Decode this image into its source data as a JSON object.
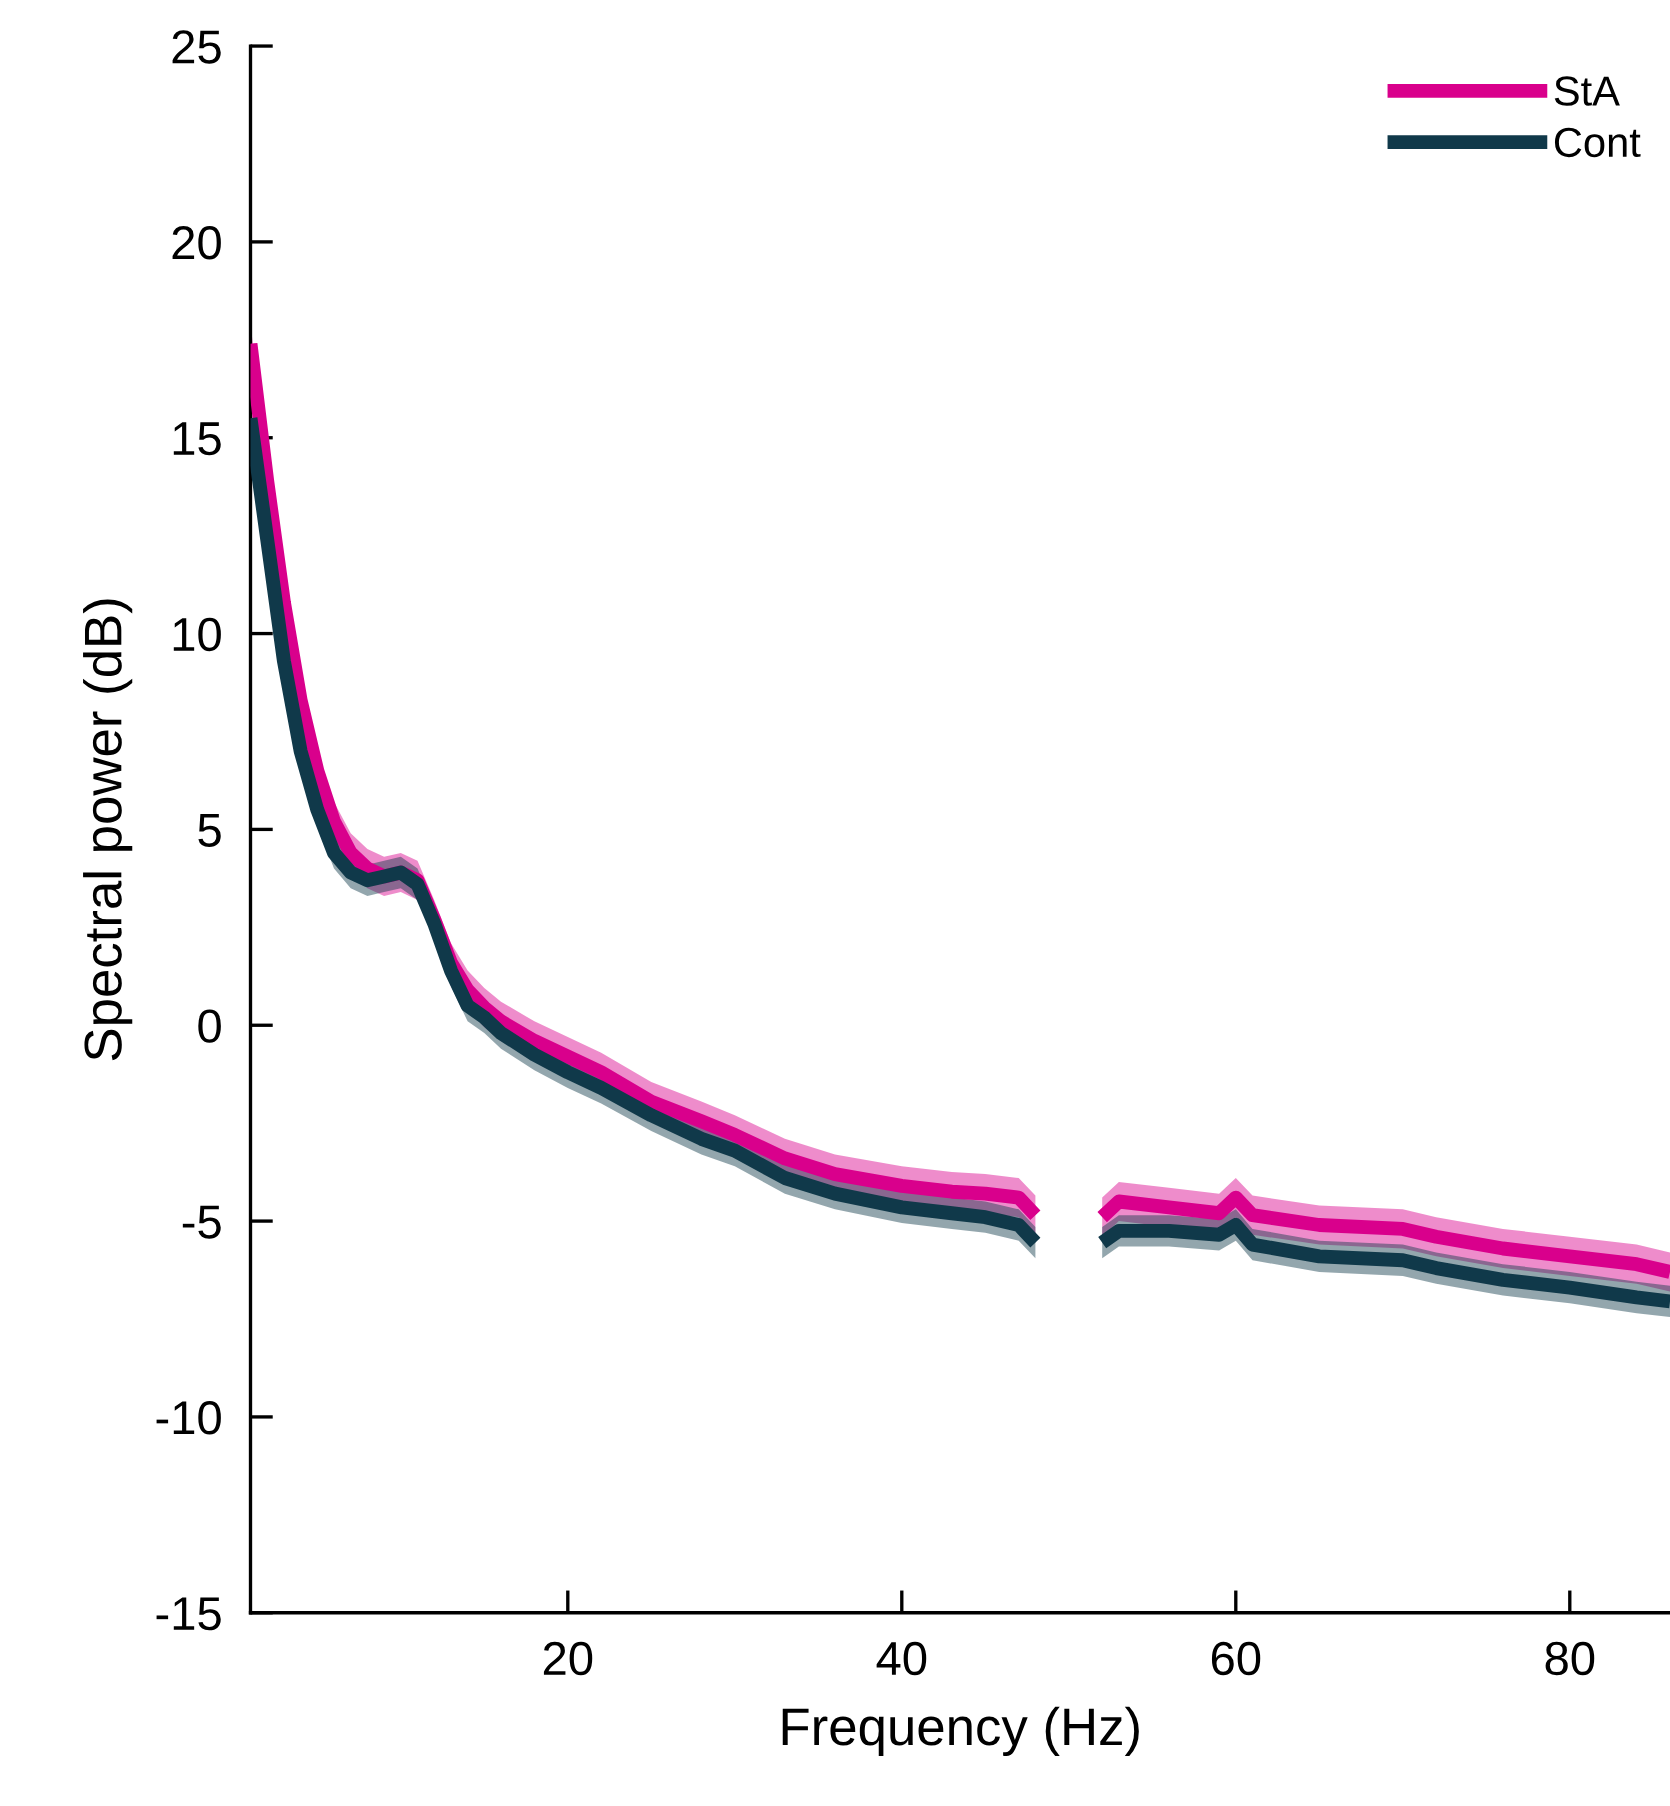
{
  "chart_data": {
    "type": "line",
    "xlabel": "Frequency (Hz)",
    "ylabel": "Spectral power (dB)",
    "x": [
      1,
      2,
      3,
      4,
      5,
      6,
      7,
      8,
      9,
      10,
      11,
      12,
      13,
      14,
      15,
      16,
      18,
      20,
      22,
      25,
      28,
      30,
      33,
      36,
      40,
      43,
      45,
      47,
      48,
      50,
      52,
      53,
      56,
      59,
      60,
      61,
      65,
      70,
      72,
      76,
      80,
      84,
      86
    ],
    "series": [
      {
        "name": "StA",
        "color": "#d9008c",
        "values": [
          17.4,
          13.9,
          10.8,
          8.3,
          6.5,
          5.2,
          4.4,
          4.0,
          3.8,
          3.9,
          3.7,
          2.7,
          1.6,
          0.9,
          0.45,
          0.1,
          -0.4,
          -0.8,
          -1.2,
          -1.95,
          -2.45,
          -2.8,
          -3.4,
          -3.8,
          -4.1,
          -4.25,
          -4.3,
          -4.4,
          -4.85,
          null,
          -4.9,
          -4.5,
          -4.65,
          -4.8,
          -4.4,
          -4.85,
          -5.1,
          -5.2,
          -5.4,
          -5.7,
          -5.9,
          -6.1,
          -6.3
        ],
        "upper": [
          17.9,
          14.4,
          11.3,
          8.8,
          7.0,
          5.7,
          4.9,
          4.5,
          4.3,
          4.4,
          4.2,
          3.2,
          2.1,
          1.4,
          0.95,
          0.6,
          0.1,
          -0.3,
          -0.7,
          -1.45,
          -1.95,
          -2.3,
          -2.9,
          -3.3,
          -3.6,
          -3.75,
          -3.8,
          -3.9,
          -4.35,
          null,
          -4.4,
          -4.0,
          -4.15,
          -4.3,
          -3.9,
          -4.35,
          -4.6,
          -4.7,
          -4.9,
          -5.2,
          -5.4,
          -5.6,
          -5.8
        ],
        "lower": [
          16.9,
          13.4,
          10.3,
          7.8,
          6.0,
          4.7,
          3.9,
          3.5,
          3.3,
          3.4,
          3.2,
          2.2,
          1.1,
          0.4,
          -0.05,
          -0.4,
          -0.9,
          -1.3,
          -1.7,
          -2.45,
          -2.95,
          -3.3,
          -3.9,
          -4.3,
          -4.6,
          -4.75,
          -4.8,
          -4.9,
          -5.35,
          null,
          -5.4,
          -5.0,
          -5.15,
          -5.3,
          -4.9,
          -5.35,
          -5.6,
          -5.7,
          -5.9,
          -6.2,
          -6.4,
          -6.6,
          -6.8
        ]
      },
      {
        "name": "Cont",
        "color": "#10394a",
        "values": [
          15.5,
          12.4,
          9.3,
          7.0,
          5.5,
          4.4,
          3.9,
          3.7,
          3.8,
          3.9,
          3.6,
          2.6,
          1.4,
          0.5,
          0.2,
          -0.2,
          -0.75,
          -1.2,
          -1.6,
          -2.3,
          -2.9,
          -3.2,
          -3.9,
          -4.3,
          -4.65,
          -4.8,
          -4.9,
          -5.1,
          -5.55,
          null,
          -5.55,
          -5.25,
          -5.25,
          -5.35,
          -5.1,
          -5.6,
          -5.9,
          -6.0,
          -6.2,
          -6.5,
          -6.7,
          -6.95,
          -7.05
        ],
        "upper": [
          15.9,
          12.8,
          9.7,
          7.4,
          5.9,
          4.8,
          4.3,
          4.1,
          4.2,
          4.3,
          4.0,
          3.0,
          1.8,
          0.9,
          0.6,
          0.2,
          -0.35,
          -0.8,
          -1.2,
          -1.9,
          -2.5,
          -2.8,
          -3.5,
          -3.9,
          -4.25,
          -4.4,
          -4.5,
          -4.7,
          -5.15,
          null,
          -5.15,
          -4.85,
          -4.85,
          -4.95,
          -4.7,
          -5.2,
          -5.5,
          -5.6,
          -5.8,
          -6.1,
          -6.3,
          -6.55,
          -6.65
        ],
        "lower": [
          15.1,
          12.0,
          8.9,
          6.6,
          5.1,
          4.0,
          3.5,
          3.3,
          3.4,
          3.5,
          3.2,
          2.2,
          1.0,
          0.1,
          -0.2,
          -0.6,
          -1.15,
          -1.6,
          -2.0,
          -2.7,
          -3.3,
          -3.6,
          -4.3,
          -4.7,
          -5.05,
          -5.2,
          -5.3,
          -5.5,
          -5.95,
          null,
          -5.95,
          -5.65,
          -5.65,
          -5.75,
          -5.5,
          -6.0,
          -6.3,
          -6.4,
          -6.6,
          -6.9,
          -7.1,
          -7.35,
          -7.45
        ]
      }
    ],
    "xlim": [
      1,
      86
    ],
    "xticks": [
      20,
      40,
      60,
      80
    ],
    "ylim": [
      -15,
      25
    ],
    "yticks": [
      -15,
      -10,
      -5,
      0,
      5,
      10,
      15,
      20,
      25
    ],
    "grid": false,
    "legend": "top right",
    "line_style": "solid",
    "marker": "none"
  }
}
